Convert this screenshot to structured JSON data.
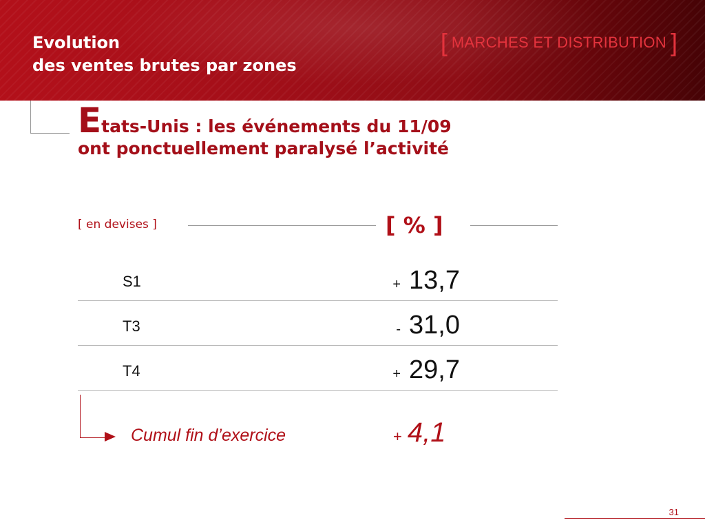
{
  "header": {
    "title_line1": "Evolution",
    "title_line2": "des ventes brutes par zones",
    "section_open": "[",
    "section_label": "MARCHES ET DISTRIBUTION",
    "section_close": "]"
  },
  "heading": {
    "cap": "E",
    "rest": "tats-Unis : les événements du 11/09",
    "line2": "ont ponctuellement paralysé l’activité"
  },
  "units": {
    "currency_label": "[ en devises ]",
    "percent_label": "[ % ]"
  },
  "table": {
    "rows": [
      {
        "label": "S1",
        "sign": "+",
        "value": "13,7"
      },
      {
        "label": "T3",
        "sign": "-",
        "value": "31,0"
      },
      {
        "label": "T4",
        "sign": "+",
        "value": "29,7"
      }
    ]
  },
  "cumul": {
    "label": "Cumul fin d’exercice",
    "sign": "+",
    "value": "4,1"
  },
  "footer": {
    "page_number": "31"
  },
  "colors": {
    "brand_red": "#a40f19",
    "accent_red": "#b01018",
    "banner_dark": "#460306"
  }
}
